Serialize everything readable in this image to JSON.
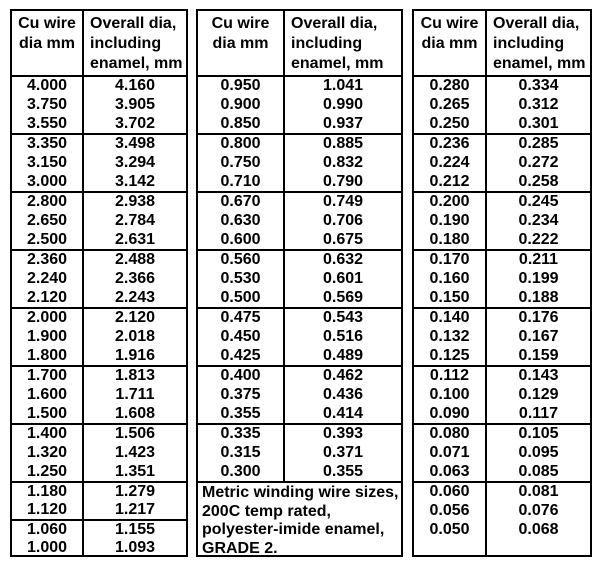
{
  "colors": {
    "background": "#ffffff",
    "grid": "#000000",
    "text": "#000000"
  },
  "header": {
    "col1_lines": [
      "Cu wire",
      "dia mm"
    ],
    "col2_lines": [
      "Overall dia,",
      "including",
      "enamel, mm"
    ]
  },
  "note": {
    "lines": [
      "Metric winding wire sizes,",
      "200C temp rated,",
      "polyester-imide enamel,",
      "GRADE 2."
    ]
  },
  "chart_data": {
    "type": "table",
    "title": "Metric winding wire sizes, 200C temp rated, polyester-imide enamel, GRADE 2.",
    "columns": [
      "Cu wire dia mm",
      "Overall dia, including enamel, mm"
    ],
    "tables": [
      {
        "groups": [
          [
            [
              "4.000",
              "4.160"
            ],
            [
              "3.750",
              "3.905"
            ],
            [
              "3.550",
              "3.702"
            ]
          ],
          [
            [
              "3.350",
              "3.498"
            ],
            [
              "3.150",
              "3.294"
            ],
            [
              "3.000",
              "3.142"
            ]
          ],
          [
            [
              "2.800",
              "2.938"
            ],
            [
              "2.650",
              "2.784"
            ],
            [
              "2.500",
              "2.631"
            ]
          ],
          [
            [
              "2.360",
              "2.488"
            ],
            [
              "2.240",
              "2.366"
            ],
            [
              "2.120",
              "2.243"
            ]
          ],
          [
            [
              "2.000",
              "2.120"
            ],
            [
              "1.900",
              "2.018"
            ],
            [
              "1.800",
              "1.916"
            ]
          ],
          [
            [
              "1.700",
              "1.813"
            ],
            [
              "1.600",
              "1.711"
            ],
            [
              "1.500",
              "1.608"
            ]
          ],
          [
            [
              "1.400",
              "1.506"
            ],
            [
              "1.320",
              "1.423"
            ],
            [
              "1.250",
              "1.351"
            ]
          ],
          [
            [
              "1.180",
              "1.279"
            ],
            [
              "1.120",
              "1.217"
            ]
          ],
          [
            [
              "1.060",
              "1.155"
            ],
            [
              "1.000",
              "1.093"
            ]
          ]
        ]
      },
      {
        "has_footer_note": true,
        "groups": [
          [
            [
              "0.950",
              "1.041"
            ],
            [
              "0.900",
              "0.990"
            ],
            [
              "0.850",
              "0.937"
            ]
          ],
          [
            [
              "0.800",
              "0.885"
            ],
            [
              "0.750",
              "0.832"
            ],
            [
              "0.710",
              "0.790"
            ]
          ],
          [
            [
              "0.670",
              "0.749"
            ],
            [
              "0.630",
              "0.706"
            ],
            [
              "0.600",
              "0.675"
            ]
          ],
          [
            [
              "0.560",
              "0.632"
            ],
            [
              "0.530",
              "0.601"
            ],
            [
              "0.500",
              "0.569"
            ]
          ],
          [
            [
              "0.475",
              "0.543"
            ],
            [
              "0.450",
              "0.516"
            ],
            [
              "0.425",
              "0.489"
            ]
          ],
          [
            [
              "0.400",
              "0.462"
            ],
            [
              "0.375",
              "0.436"
            ],
            [
              "0.355",
              "0.414"
            ]
          ],
          [
            [
              "0.335",
              "0.393"
            ],
            [
              "0.315",
              "0.371"
            ],
            [
              "0.300",
              "0.355"
            ]
          ]
        ]
      },
      {
        "groups": [
          [
            [
              "0.280",
              "0.334"
            ],
            [
              "0.265",
              "0.312"
            ],
            [
              "0.250",
              "0.301"
            ]
          ],
          [
            [
              "0.236",
              "0.285"
            ],
            [
              "0.224",
              "0.272"
            ],
            [
              "0.212",
              "0.258"
            ]
          ],
          [
            [
              "0.200",
              "0.245"
            ],
            [
              "0.190",
              "0.234"
            ],
            [
              "0.180",
              "0.222"
            ]
          ],
          [
            [
              "0.170",
              "0.211"
            ],
            [
              "0.160",
              "0.199"
            ],
            [
              "0.150",
              "0.188"
            ]
          ],
          [
            [
              "0.140",
              "0.176"
            ],
            [
              "0.132",
              "0.167"
            ],
            [
              "0.125",
              "0.159"
            ]
          ],
          [
            [
              "0.112",
              "0.143"
            ],
            [
              "0.100",
              "0.129"
            ],
            [
              "0.090",
              "0.117"
            ]
          ],
          [
            [
              "0.080",
              "0.105"
            ],
            [
              "0.071",
              "0.095"
            ],
            [
              "0.063",
              "0.085"
            ]
          ],
          [
            [
              "0.060",
              "0.081"
            ],
            [
              "0.056",
              "0.076"
            ],
            [
              "0.050",
              "0.068"
            ]
          ]
        ]
      }
    ]
  }
}
